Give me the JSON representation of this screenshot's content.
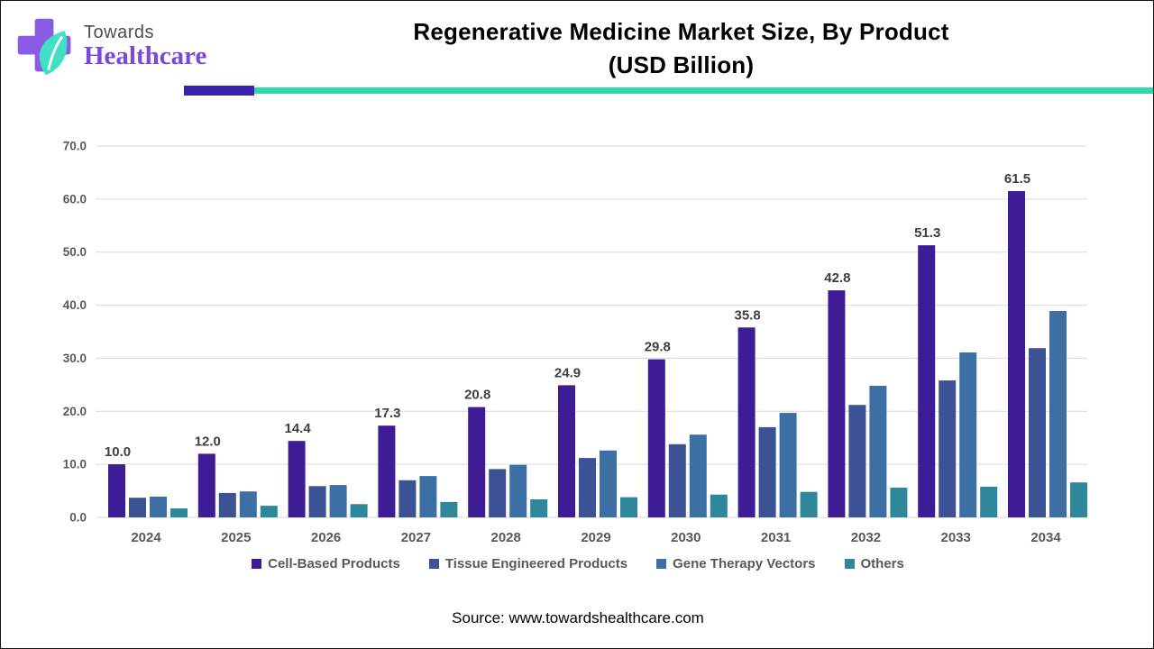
{
  "header": {
    "logo": {
      "line1": "Towards",
      "line2": "Healthcare",
      "cross_color": "#8a5ce6",
      "leaf_color": "#41dfc3",
      "line1_color": "#4d4d4d",
      "line2_color": "#7b48d9"
    },
    "title_line1": "Regenerative Medicine Market Size, By Product",
    "title_line2": "(USD Billion)",
    "underline_purple_color": "#3a22ae",
    "underline_teal_color": "#2fd7ac"
  },
  "chart_data": {
    "type": "bar",
    "title": "Regenerative Medicine Market Size, By Product (USD Billion)",
    "categories": [
      "2024",
      "2025",
      "2026",
      "2027",
      "2028",
      "2029",
      "2030",
      "2031",
      "2032",
      "2033",
      "2034"
    ],
    "series": [
      {
        "name": "Cell-Based Products",
        "color": "#3d1c96",
        "values": [
          10.0,
          12.0,
          14.4,
          17.3,
          20.8,
          24.9,
          29.8,
          35.8,
          42.8,
          51.3,
          61.5
        ]
      },
      {
        "name": "Tissue Engineered Products",
        "color": "#3b5295",
        "values": [
          3.7,
          4.6,
          5.9,
          7.0,
          9.1,
          11.2,
          13.8,
          17.0,
          21.2,
          25.8,
          31.9
        ]
      },
      {
        "name": "Gene Therapy Vectors",
        "color": "#3c70a5",
        "values": [
          3.9,
          4.9,
          6.1,
          7.8,
          9.9,
          12.6,
          15.6,
          19.7,
          24.8,
          31.1,
          38.9
        ]
      },
      {
        "name": "Others",
        "color": "#2f879c",
        "values": [
          1.7,
          2.2,
          2.5,
          2.9,
          3.4,
          3.8,
          4.3,
          4.8,
          5.6,
          5.8,
          6.6
        ]
      }
    ],
    "value_labels": {
      "series": "Cell-Based Products",
      "values": [
        "10.0",
        "12.0",
        "14.4",
        "17.3",
        "20.8",
        "24.9",
        "29.8",
        "35.8",
        "42.8",
        "51.3",
        "61.5"
      ]
    },
    "ylim": [
      0,
      70
    ],
    "ytick_step": 10,
    "ytick_labels": [
      "0.0",
      "10.0",
      "20.0",
      "30.0",
      "40.0",
      "50.0",
      "60.0",
      "70.0"
    ],
    "grid": true,
    "legend_position": "bottom"
  },
  "style": {
    "grid_color": "#d9d9d9",
    "axis_text_color": "#595959",
    "value_label_color": "#3f3f3f"
  },
  "footer": {
    "source": "Source: www.towardshealthcare.com"
  }
}
